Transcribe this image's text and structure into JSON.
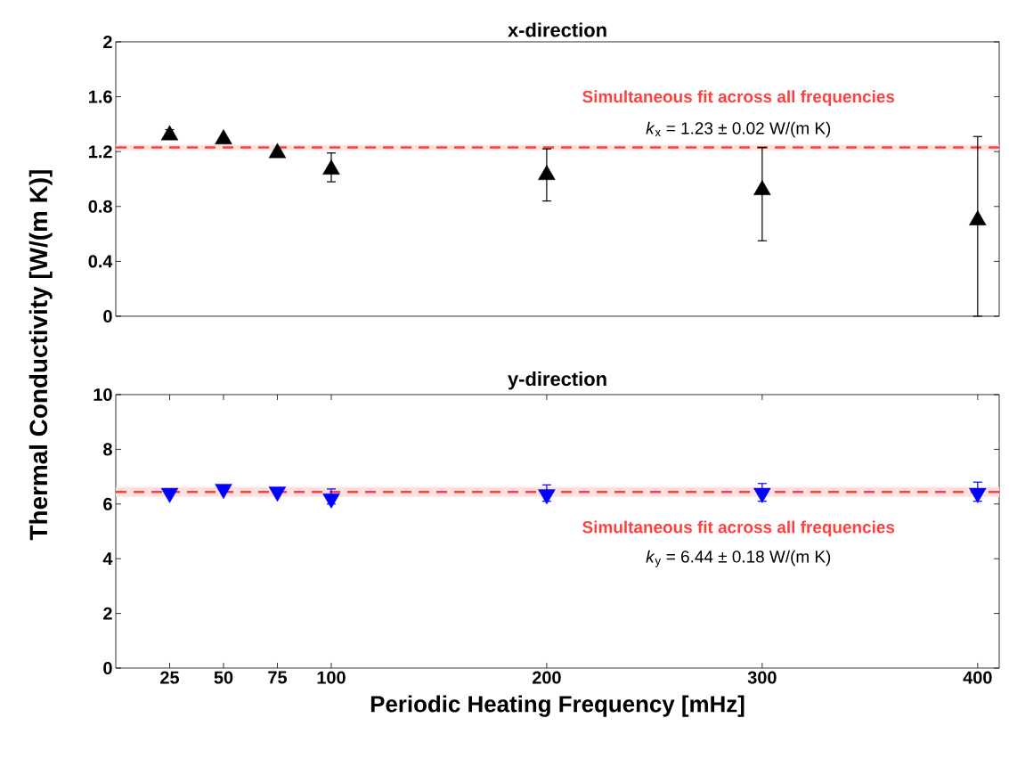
{
  "chart_data": [
    {
      "type": "scatter",
      "title": "x-direction",
      "ylabel": "Thermal Conductivity [W/(m K)]",
      "x": [
        25,
        50,
        75,
        100,
        200,
        300,
        400
      ],
      "xlim": [
        0,
        410
      ],
      "ylim": [
        0,
        2
      ],
      "yticks": [
        0,
        0.4,
        0.8,
        1.2,
        1.6,
        2
      ],
      "tick_labels": "y",
      "marker": "triangle",
      "series": [
        {
          "color": "#000000",
          "values": [
            1.32,
            1.29,
            1.19,
            1.07,
            1.03,
            0.92,
            0.7
          ],
          "errors": [
            [
              1.3,
              1.36
            ],
            null,
            null,
            [
              0.98,
              1.19
            ],
            [
              0.84,
              1.22
            ],
            [
              0.55,
              1.23
            ],
            [
              0,
              1.31
            ]
          ]
        }
      ],
      "bands": [
        {
          "axis": "y",
          "from": 1.21,
          "to": 1.25,
          "color": "#fde0e0"
        }
      ],
      "ref_lines": [
        {
          "axis": "y",
          "value": 1.23,
          "label": "Simultaneous fit across all frequencies",
          "color": "#ff4040",
          "line_style": "dashed"
        }
      ],
      "annotations": [
        "*k*$_{x}$ = 1.23 ± 0.02 W/(m K)"
      ]
    },
    {
      "type": "scatter",
      "title": "y-direction",
      "xlabel": "Periodic Heating Frequency [mHz]",
      "x": [
        25,
        50,
        75,
        100,
        200,
        300,
        400
      ],
      "xlim": [
        0,
        410
      ],
      "xticks": [
        25,
        50,
        75,
        100,
        200,
        300,
        400
      ],
      "ylim": [
        0,
        10
      ],
      "yticks": [
        0,
        2,
        4,
        6,
        8,
        10
      ],
      "marker": "triangle",
      "series": [
        {
          "color": "#0000ff",
          "values": [
            6.4,
            6.55,
            6.45,
            6.2,
            6.35,
            6.4,
            6.4
          ],
          "errors": [
            null,
            null,
            null,
            [
              6.0,
              6.55
            ],
            [
              6.1,
              6.7
            ],
            [
              6.1,
              6.75
            ],
            [
              6.1,
              6.8
            ]
          ]
        }
      ],
      "bands": [
        {
          "axis": "y",
          "from": 6.26,
          "to": 6.62,
          "color": "#fde0e0"
        }
      ],
      "ref_lines": [
        {
          "axis": "y",
          "value": 6.44,
          "label": "Simultaneous fit across all frequencies",
          "color": "#ff4040",
          "line_style": "dashed"
        }
      ],
      "annotations": [
        "*k*$_{y}$ = 6.44 ± 0.18 W/(m K)"
      ]
    }
  ]
}
